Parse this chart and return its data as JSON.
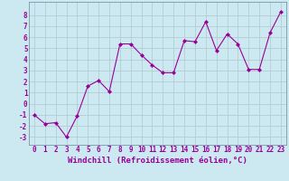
{
  "x": [
    0,
    1,
    2,
    3,
    4,
    5,
    6,
    7,
    8,
    9,
    10,
    11,
    12,
    13,
    14,
    15,
    16,
    17,
    18,
    19,
    20,
    21,
    22,
    23
  ],
  "y": [
    -1,
    -1.8,
    -1.7,
    -3.0,
    -1.1,
    1.6,
    2.1,
    1.1,
    5.4,
    5.4,
    4.4,
    3.5,
    2.8,
    2.8,
    5.7,
    5.6,
    7.4,
    4.8,
    6.3,
    5.4,
    3.1,
    3.1,
    6.4,
    8.3
  ],
  "line_color": "#990099",
  "marker": "D",
  "marker_size": 2.0,
  "bg_color": "#cce8f0",
  "grid_color": "#b0c8d0",
  "xlabel": "Windchill (Refroidissement éolien,°C)",
  "ylabel_ticks": [
    -3,
    -2,
    -1,
    0,
    1,
    2,
    3,
    4,
    5,
    6,
    7,
    8
  ],
  "xlim": [
    -0.5,
    23.5
  ],
  "ylim": [
    -3.7,
    9.2
  ],
  "tick_fontsize": 5.5,
  "label_fontsize": 6.5
}
